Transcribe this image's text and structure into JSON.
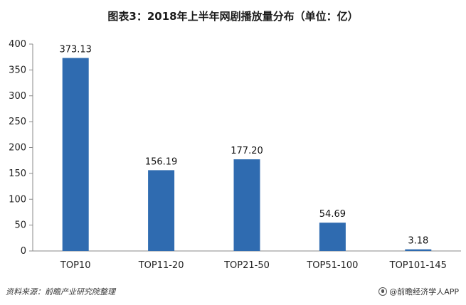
{
  "chart_data": {
    "type": "bar",
    "title": "图表3：2018年上半年网剧播放量分布（单位：亿）",
    "categories": [
      "TOP10",
      "TOP11-20",
      "TOP21-50",
      "TOP51-100",
      "TOP101-145"
    ],
    "values": [
      373.13,
      156.19,
      177.2,
      54.69,
      3.18
    ],
    "value_labels": [
      "373.13",
      "156.19",
      "177.20",
      "54.69",
      "3.18"
    ],
    "yticks": [
      0,
      50,
      100,
      150,
      200,
      250,
      300,
      350,
      400
    ],
    "ylim": [
      0,
      400
    ],
    "xlabel": "",
    "ylabel": "",
    "grid": false,
    "bar_color": "#2f6bb0"
  },
  "footer": {
    "source": "资料来源：前瞻产业研究院整理",
    "brand": "@前瞻经济学人APP"
  }
}
